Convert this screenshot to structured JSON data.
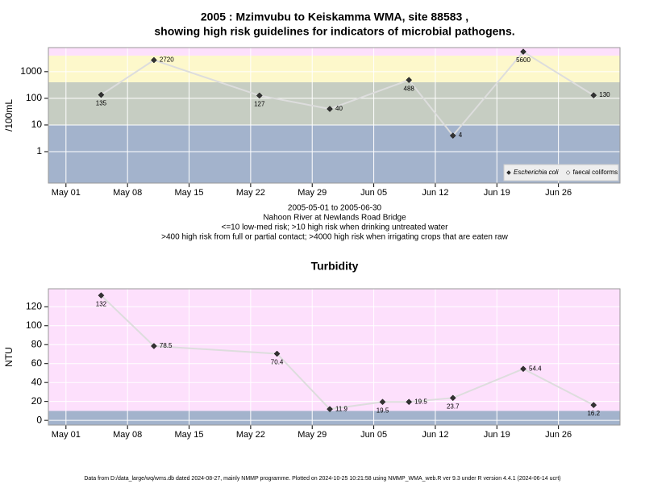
{
  "chart_data": [
    {
      "type": "line",
      "title": [
        "2005 : Mzimvubu to Keiskamma WMA, site 88583 ,",
        "showing high risk guidelines for indicators of microbial pathogens."
      ],
      "ylabel": "/100mL",
      "log_y": true,
      "grid": true,
      "x": [
        "05-05",
        "05-11",
        "05-23",
        "05-31",
        "06-09",
        "06-14",
        "06-22",
        "06-30"
      ],
      "xlim": [
        "04-29",
        "07-03"
      ],
      "xticks": [
        {
          "value": "05-01",
          "label": "May 01"
        },
        {
          "value": "05-08",
          "label": "May 08"
        },
        {
          "value": "05-15",
          "label": "May 15"
        },
        {
          "value": "05-22",
          "label": "May 22"
        },
        {
          "value": "05-29",
          "label": "May 29"
        },
        {
          "value": "06-05",
          "label": "Jun 05"
        },
        {
          "value": "06-12",
          "label": "Jun 12"
        },
        {
          "value": "06-19",
          "label": "Jun 19"
        },
        {
          "value": "06-26",
          "label": "Jun 26"
        }
      ],
      "ylim": [
        0.066,
        8000
      ],
      "yticks": [
        1,
        10,
        100,
        1000
      ],
      "background": "#fde0fc",
      "bands": [
        {
          "below": 10,
          "color": "#a3b3cc"
        },
        {
          "below": 400,
          "color": "#c6cdc2"
        },
        {
          "below": 4000,
          "color": "#fdf8cb"
        }
      ],
      "line_color": "#dddddd",
      "legend": "bottom-right",
      "series": [
        {
          "name": "Escherichia coli",
          "color": "#333333",
          "values": [
            135,
            2720,
            127,
            40,
            488,
            4,
            5600,
            130
          ]
        },
        {
          "name": "faecal coliforms",
          "color": "#ffffff",
          "values": [
            null,
            null,
            null,
            null,
            null,
            null,
            null,
            null
          ]
        }
      ],
      "notes": [
        "2005-05-01 to 2005-06-30",
        "Nahoon River at Newlands Road Bridge",
        "<=10 low-med risk; >10 high risk when drinking untreated water",
        ">400 high risk from full or partial contact; >4000 high risk when irrigating crops that are eaten raw"
      ]
    },
    {
      "type": "line",
      "title": [
        "Turbidity"
      ],
      "ylabel": "NTU",
      "log_y": false,
      "grid": true,
      "x": [
        "05-05",
        "05-11",
        "05-25",
        "05-31",
        "06-06",
        "06-09",
        "06-14",
        "06-22",
        "06-30"
      ],
      "xlim": [
        "04-29",
        "07-03"
      ],
      "xticks": [
        {
          "value": "05-01",
          "label": "May 01"
        },
        {
          "value": "05-08",
          "label": "May 08"
        },
        {
          "value": "05-15",
          "label": "May 15"
        },
        {
          "value": "05-22",
          "label": "May 22"
        },
        {
          "value": "05-29",
          "label": "May 29"
        },
        {
          "value": "06-05",
          "label": "Jun 05"
        },
        {
          "value": "06-12",
          "label": "Jun 12"
        },
        {
          "value": "06-19",
          "label": "Jun 19"
        },
        {
          "value": "06-26",
          "label": "Jun 26"
        }
      ],
      "ylim": [
        -5,
        139
      ],
      "yticks": [
        0,
        20,
        40,
        60,
        80,
        100,
        120
      ],
      "background": "#fde0fc",
      "bands": [
        {
          "below": 10,
          "color": "#a3b3cc"
        }
      ],
      "line_color": "#dddddd",
      "series": [
        {
          "name": "Turbidity",
          "color": "#333333",
          "values": [
            132,
            78.5,
            70.4,
            11.9,
            19.5,
            19.5,
            23.7,
            54.4,
            16.2
          ]
        }
      ]
    }
  ],
  "footer": "Data from D:/data_large/wq/wms.db dated 2024-08-27, mainly NMMP programme. Plotted on 2024-10-25 10:21:58 using NMMP_WMA_web.R ver 9.3 under R version 4.4.1 (2024-06-14 ucrt)"
}
